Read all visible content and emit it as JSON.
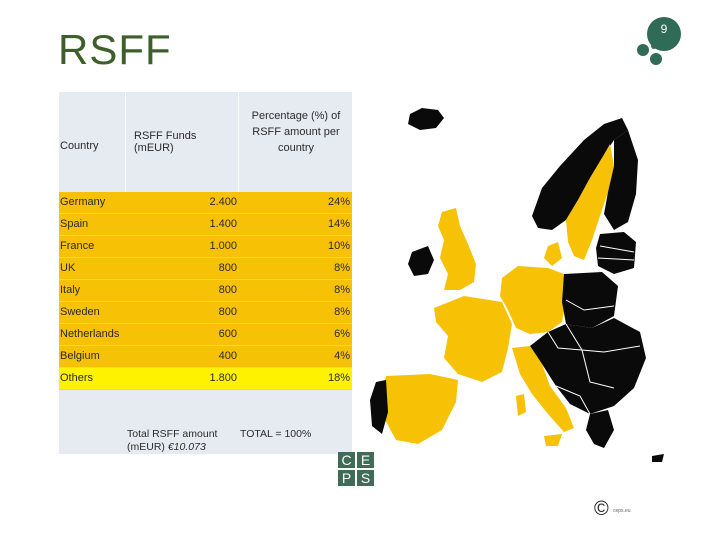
{
  "slide": {
    "title": "RSFF",
    "page_number": "9"
  },
  "table": {
    "header": {
      "country": "Country",
      "funds": "RSFF Funds (mEUR)",
      "percentage": "Percentage (%) of RSFF amount per country"
    },
    "rows": [
      {
        "country": "Germany",
        "funds": "2.400",
        "pct": "24%"
      },
      {
        "country": "Spain",
        "funds": "1.400",
        "pct": "14%"
      },
      {
        "country": "France",
        "funds": "1.000",
        "pct": "10%"
      },
      {
        "country": "UK",
        "funds": "800",
        "pct": "8%"
      },
      {
        "country": "Italy",
        "funds": "800",
        "pct": "8%"
      },
      {
        "country": "Sweden",
        "funds": "800",
        "pct": "8%"
      },
      {
        "country": "Netherlands",
        "funds": "600",
        "pct": "6%"
      },
      {
        "country": "Belgium",
        "funds": "400",
        "pct": "4%"
      },
      {
        "country": "Others",
        "funds": "1.800",
        "pct": "18%"
      }
    ],
    "total_funds_label": "Total RSFF amount (mEUR)",
    "total_funds_value": "€10.073",
    "total_pct": "TOTAL = 100%"
  },
  "logo": {
    "letters": [
      "C",
      "E",
      "P",
      "S"
    ]
  },
  "copyright": {
    "symbol": "©",
    "text": "ceps.eu"
  },
  "colors": {
    "title": "#3f5f2a",
    "highlight": "#f7c106",
    "others": "#fff200",
    "header_bg": "#e6ebf2",
    "badge": "#2f6b57",
    "map_black": "#0a0a0a"
  }
}
